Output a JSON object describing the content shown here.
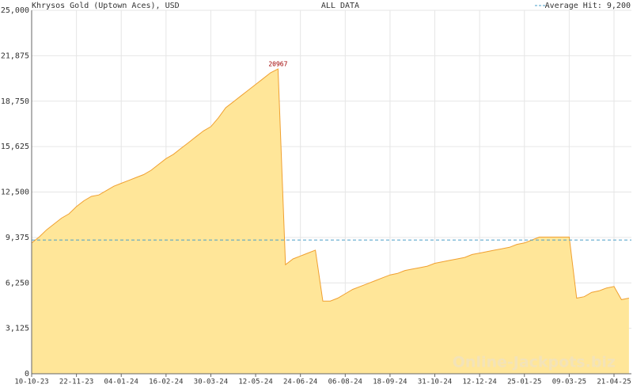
{
  "chart_data": {
    "type": "area",
    "title": "Khrysos Gold (Uptown Aces), USD",
    "subtitle": "ALL DATA",
    "watermark": "Online-Jackpots.biz",
    "peak_label": "20967",
    "average": {
      "name": "Average Hit: 9,200",
      "value": 9200,
      "color": "#4a9fc8"
    },
    "categories": [
      "10-10-23",
      null,
      null,
      null,
      null,
      null,
      "22-11-23",
      null,
      null,
      null,
      null,
      null,
      "04-01-24",
      null,
      null,
      null,
      null,
      null,
      "16-02-24",
      null,
      null,
      null,
      null,
      null,
      "30-03-24",
      null,
      null,
      null,
      null,
      null,
      "12-05-24",
      null,
      null,
      null,
      null,
      null,
      "24-06-24",
      null,
      null,
      null,
      null,
      null,
      "06-08-24",
      null,
      null,
      null,
      null,
      null,
      "18-09-24",
      null,
      null,
      null,
      null,
      null,
      "31-10-24",
      null,
      null,
      null,
      null,
      null,
      "12-12-24",
      null,
      null,
      null,
      null,
      null,
      "25-01-25",
      null,
      null,
      null,
      null,
      null,
      "09-03-25",
      null,
      null,
      null,
      null,
      null,
      "21-04-25",
      null,
      null
    ],
    "series": [
      {
        "name": "Khrysos Gold",
        "color": "#f0a030",
        "fill": "#ffe699",
        "values": [
          9000,
          9400,
          9900,
          10300,
          10700,
          11000,
          11500,
          11900,
          12200,
          12300,
          12600,
          12900,
          13100,
          13300,
          13500,
          13700,
          14000,
          14400,
          14800,
          15100,
          15500,
          15900,
          16300,
          16700,
          17000,
          17600,
          18300,
          18700,
          19100,
          19500,
          19900,
          20300,
          20700,
          20967,
          7500,
          7900,
          8100,
          8300,
          8500,
          5000,
          5000,
          5200,
          5500,
          5800,
          6000,
          6200,
          6400,
          6600,
          6800,
          6900,
          7100,
          7200,
          7300,
          7400,
          7600,
          7700,
          7800,
          7900,
          8000,
          8200,
          8300,
          8400,
          8500,
          8600,
          8700,
          8900,
          9000,
          9200,
          9400,
          9400,
          9400,
          9400,
          9400,
          5200,
          5300,
          5600,
          5700,
          5900,
          6000,
          5100,
          5200
        ]
      }
    ],
    "ylim": [
      0,
      25000
    ],
    "yticks": [
      0,
      {
        "value": 3125,
        "label": "3,125"
      },
      {
        "value": 6250,
        "label": "6,250"
      },
      {
        "value": 9375,
        "label": "9,375"
      },
      {
        "value": 12500,
        "label": "12,500"
      },
      {
        "value": 15625,
        "label": "15,625"
      },
      {
        "value": 18750,
        "label": "18,750"
      },
      {
        "value": 21875,
        "label": "21,875"
      },
      {
        "value": 25000,
        "label": "25,000"
      }
    ],
    "grid": true
  }
}
